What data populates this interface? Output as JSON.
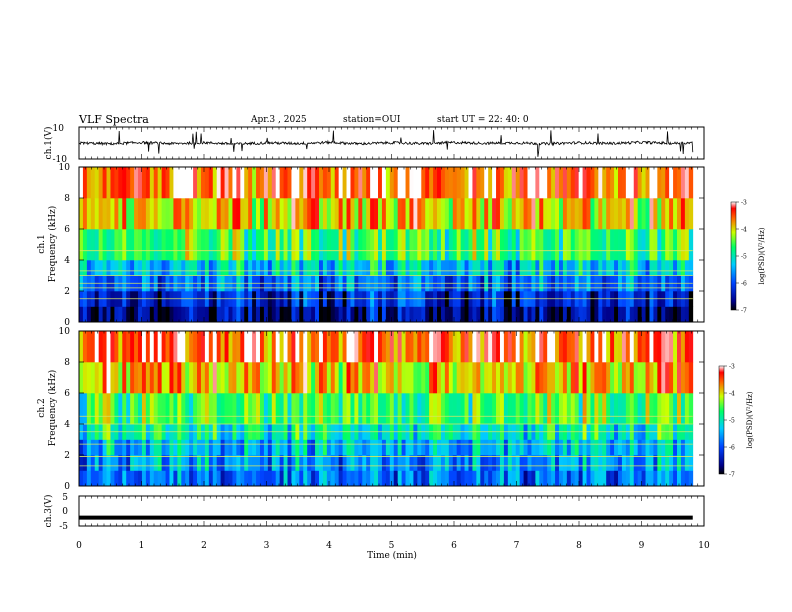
{
  "header": {
    "title": "VLF Spectra",
    "date": "Apr.3 , 2025",
    "station": "station=OUI",
    "start": "start UT = 22: 40: 0"
  },
  "chart_data": [
    {
      "type": "line",
      "id": "ch1-wave",
      "ylabel": "ch.1(V)",
      "ylim": [
        -10,
        10
      ],
      "yticks": [
        10,
        -10
      ],
      "x": [
        0,
        0.5,
        1,
        1.5,
        2,
        2.5,
        3,
        3.5,
        4,
        4.5,
        5,
        5.5,
        6,
        6.5,
        7,
        7.5,
        8,
        8.5,
        9,
        9.5,
        9.82
      ],
      "values": [
        0,
        -0.5,
        0.3,
        -0.4,
        0.2,
        -0.6,
        0.1,
        -0.3,
        0.4,
        -0.5,
        0.2,
        -0.4,
        0.3,
        -0.2,
        0.1,
        -0.5,
        0.2,
        -0.3,
        0.4,
        -0.2,
        0.1
      ],
      "color": "#000000"
    },
    {
      "type": "heatmap",
      "id": "ch1-spectrogram",
      "ylabel": "Frequency (kHz)",
      "panel_label": "ch.1",
      "ylim": [
        0,
        10
      ],
      "yticks": [
        0,
        2,
        4,
        6,
        8,
        10
      ],
      "x_range": [
        0,
        9.82
      ],
      "colorbar": {
        "label": "log(PSD)(V²/Hz)",
        "range": [
          -7,
          -3
        ],
        "ticks": [
          "-3",
          "-4",
          "-5",
          "-6",
          "-7"
        ]
      },
      "bands_khz": [
        0,
        1,
        2,
        3,
        4,
        6,
        8,
        10
      ],
      "band_level": [
        -6.6,
        -6.3,
        -5.8,
        -5.3,
        -4.6,
        -3.9,
        -3.4
      ],
      "lines_khz": [
        1.5,
        2.2,
        2.5,
        3.0,
        3.3,
        4.6
      ]
    },
    {
      "type": "heatmap",
      "id": "ch2-spectrogram",
      "ylabel": "Frequency (kHz)",
      "panel_label": "ch.2",
      "ylim": [
        0,
        10
      ],
      "yticks": [
        0,
        2,
        4,
        6,
        8,
        10
      ],
      "x_range": [
        0,
        9.82
      ],
      "colorbar": {
        "label": "log(PSD)(V²/Hz)",
        "range": [
          -7,
          -3
        ],
        "ticks": [
          "-3",
          "-4",
          "-5",
          "-6",
          "-7"
        ]
      },
      "bands_khz": [
        0,
        1,
        2,
        3,
        4,
        6,
        8,
        10
      ],
      "band_level": [
        -5.8,
        -5.6,
        -5.4,
        -5.0,
        -4.6,
        -3.9,
        -3.4
      ],
      "lines_khz": [
        1.3,
        1.9,
        2.7,
        3.5,
        4.0,
        4.5
      ]
    },
    {
      "type": "line",
      "id": "ch3-wave",
      "ylabel": "ch.3(V)",
      "ylim": [
        -5,
        5
      ],
      "yticks": [
        5,
        0,
        -5
      ],
      "x": [
        0,
        9.82
      ],
      "values": [
        -2.2,
        -2.2
      ],
      "color": "#000000",
      "xlabel": "Time (min)",
      "xticks": [
        0,
        1,
        2,
        3,
        4,
        5,
        6,
        7,
        8,
        9,
        10
      ],
      "xlim": [
        0,
        10
      ]
    }
  ]
}
